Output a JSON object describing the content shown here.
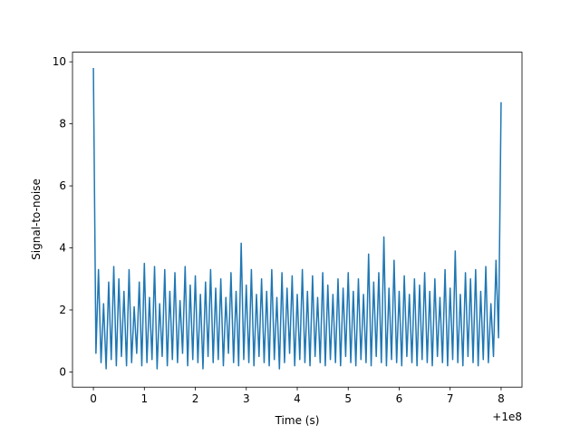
{
  "chart_data": {
    "type": "line",
    "xlabel": "Time (s)",
    "ylabel": "Signal-to-noise",
    "x_offset_label": "+1e8",
    "x": [
      0,
      0.05,
      0.1,
      0.15,
      0.2,
      0.25,
      0.3,
      0.35,
      0.4,
      0.45,
      0.5,
      0.55,
      0.6,
      0.65,
      0.7,
      0.75,
      0.8,
      0.85,
      0.9,
      0.95,
      1,
      1.05,
      1.1,
      1.15,
      1.2,
      1.25,
      1.3,
      1.35,
      1.4,
      1.45,
      1.5,
      1.55,
      1.6,
      1.65,
      1.7,
      1.75,
      1.8,
      1.85,
      1.9,
      1.95,
      2,
      2.05,
      2.1,
      2.15,
      2.2,
      2.25,
      2.3,
      2.35,
      2.4,
      2.45,
      2.5,
      2.55,
      2.6,
      2.65,
      2.7,
      2.75,
      2.8,
      2.85,
      2.9,
      2.95,
      3,
      3.05,
      3.1,
      3.15,
      3.2,
      3.25,
      3.3,
      3.35,
      3.4,
      3.45,
      3.5,
      3.55,
      3.6,
      3.65,
      3.7,
      3.75,
      3.8,
      3.85,
      3.9,
      3.95,
      4,
      4.05,
      4.1,
      4.15,
      4.2,
      4.25,
      4.3,
      4.35,
      4.4,
      4.45,
      4.5,
      4.55,
      4.6,
      4.65,
      4.7,
      4.75,
      4.8,
      4.85,
      4.9,
      4.95,
      5,
      5.05,
      5.1,
      5.15,
      5.2,
      5.25,
      5.3,
      5.35,
      5.4,
      5.45,
      5.5,
      5.55,
      5.6,
      5.65,
      5.7,
      5.75,
      5.8,
      5.85,
      5.9,
      5.95,
      6,
      6.05,
      6.1,
      6.15,
      6.2,
      6.25,
      6.3,
      6.35,
      6.4,
      6.45,
      6.5,
      6.55,
      6.6,
      6.65,
      6.7,
      6.75,
      6.8,
      6.85,
      6.9,
      6.95,
      7,
      7.05,
      7.1,
      7.15,
      7.2,
      7.25,
      7.3,
      7.35,
      7.4,
      7.45,
      7.5,
      7.55,
      7.6,
      7.65,
      7.7,
      7.75,
      7.8,
      7.85,
      7.9,
      7.95,
      8
    ],
    "series": [
      {
        "color": "#1f77b4",
        "values": [
          9.8,
          0.6,
          3.3,
          0.3,
          2.2,
          0.1,
          2.9,
          0.4,
          3.4,
          0.2,
          3.0,
          0.5,
          2.6,
          0.2,
          3.3,
          0.3,
          2.1,
          0.6,
          2.9,
          0.2,
          3.5,
          0.3,
          2.4,
          0.4,
          3.4,
          0.1,
          2.2,
          0.5,
          3.3,
          0.2,
          2.6,
          0.4,
          3.2,
          0.3,
          2.3,
          0.6,
          3.4,
          0.2,
          2.8,
          0.4,
          3.1,
          0.3,
          2.5,
          0.1,
          2.9,
          0.5,
          3.3,
          0.3,
          2.7,
          0.4,
          3.0,
          0.2,
          2.4,
          0.6,
          3.2,
          0.3,
          2.6,
          0.2,
          4.15,
          0.4,
          2.8,
          0.3,
          3.3,
          0.2,
          2.5,
          0.5,
          3.0,
          0.3,
          2.6,
          0.2,
          3.3,
          0.4,
          2.4,
          0.1,
          3.2,
          0.3,
          2.7,
          0.6,
          3.1,
          0.2,
          2.5,
          0.4,
          3.3,
          0.3,
          2.6,
          0.2,
          3.1,
          0.5,
          2.4,
          0.3,
          3.2,
          0.2,
          2.8,
          0.4,
          2.5,
          0.3,
          3.0,
          0.2,
          2.7,
          0.5,
          3.2,
          0.3,
          2.6,
          0.2,
          3.0,
          0.4,
          2.5,
          0.3,
          3.8,
          0.2,
          2.9,
          0.5,
          3.2,
          0.3,
          4.35,
          0.2,
          2.7,
          0.4,
          3.6,
          0.3,
          2.6,
          0.2,
          3.1,
          0.5,
          2.5,
          0.3,
          3.0,
          0.2,
          2.8,
          0.4,
          3.2,
          0.3,
          2.6,
          0.2,
          3.0,
          0.5,
          2.4,
          0.3,
          3.3,
          0.2,
          2.7,
          0.4,
          3.9,
          0.3,
          2.5,
          0.2,
          3.2,
          0.5,
          3.0,
          0.3,
          3.3,
          0.2,
          2.6,
          0.4,
          3.4,
          0.3,
          2.2,
          0.5,
          3.6,
          1.1,
          8.7
        ]
      }
    ],
    "xlim": [
      -0.41,
      8.41
    ],
    "ylim": [
      -0.49,
      10.31
    ],
    "xticks": [
      0,
      1,
      2,
      3,
      4,
      5,
      6,
      7,
      8
    ],
    "yticks": [
      0,
      2,
      4,
      6,
      8,
      10
    ]
  }
}
